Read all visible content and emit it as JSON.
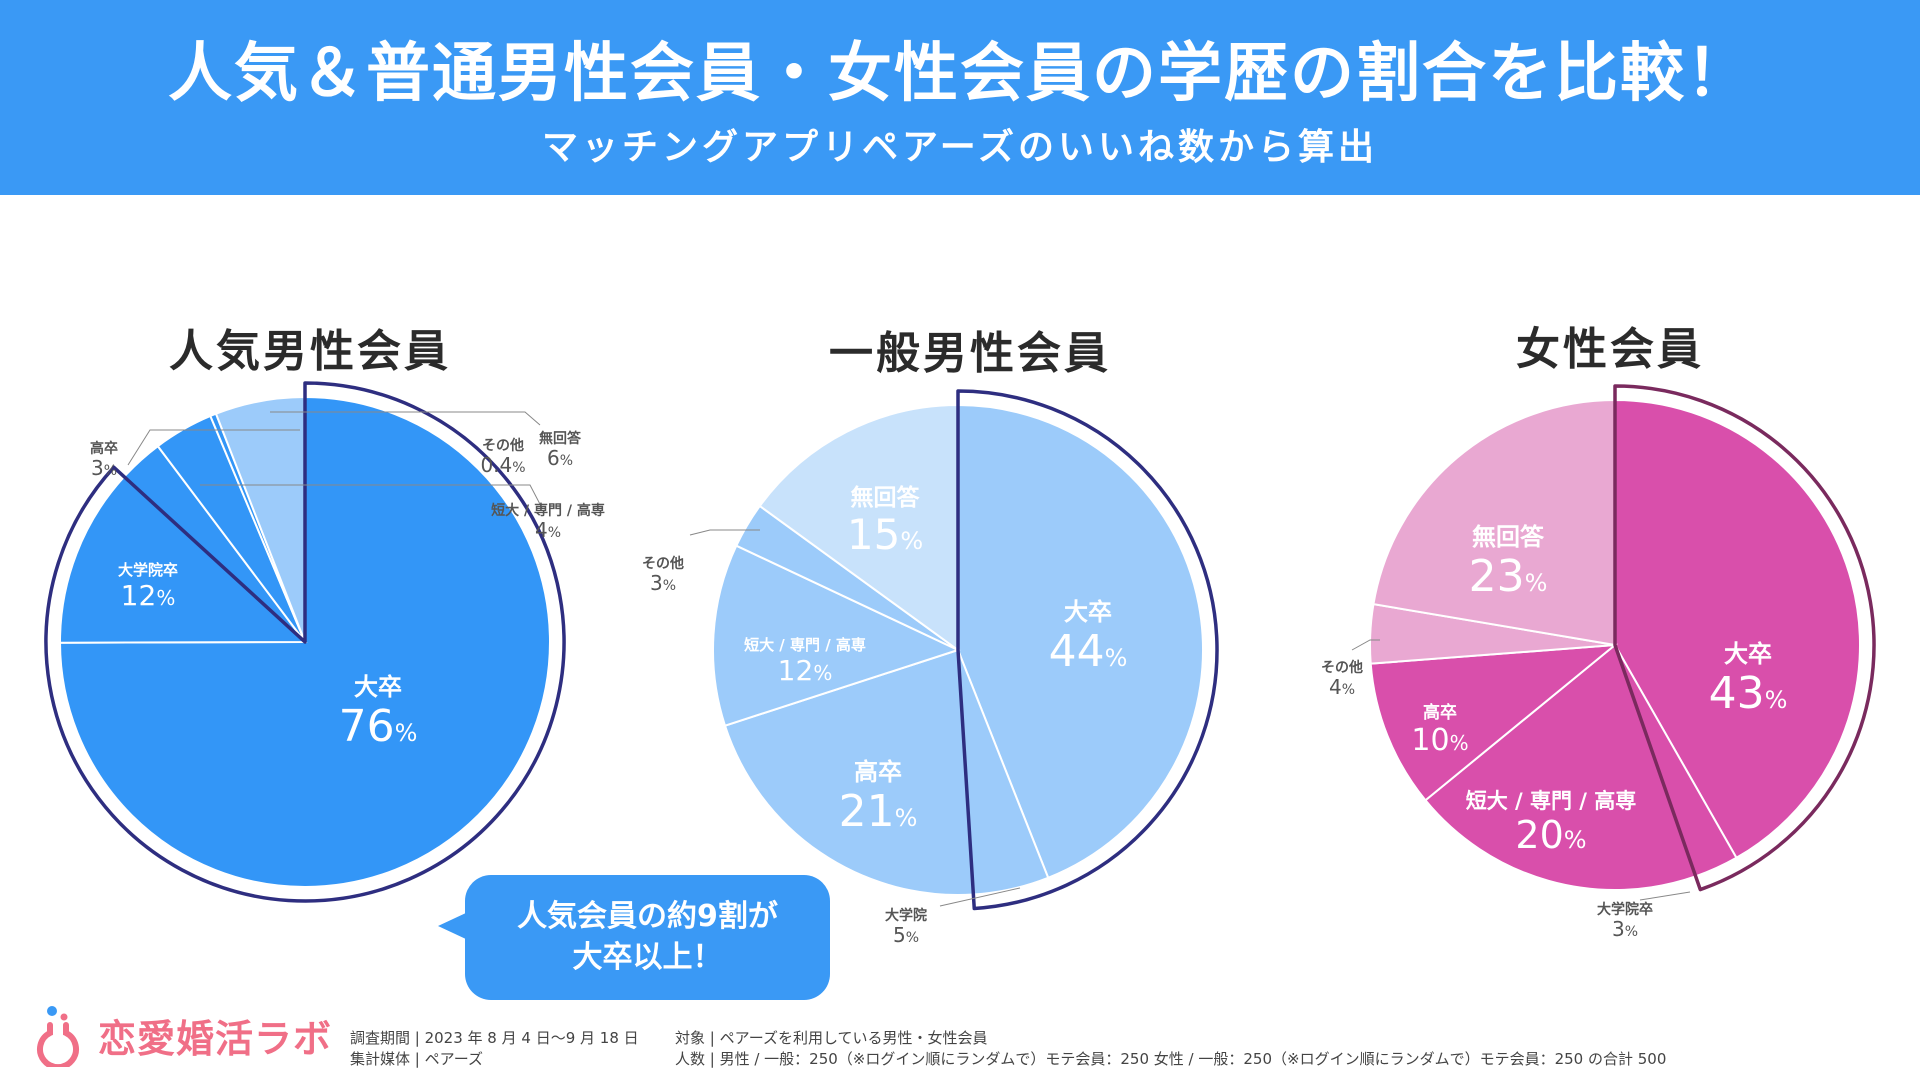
{
  "header": {
    "title": "人気＆普通男性会員・女性会員の学歴の割合を比較！",
    "subtitle": "マッチングアプリペアーズのいいね数から算出"
  },
  "colors": {
    "header_bg": "#3a99f5",
    "popular_male": "#3396f7",
    "general_male_main": "#9ccbfa",
    "general_male_light": "#c8e2fb",
    "female_main": "#d94fab",
    "female_light": "#e9a8d2",
    "highlight_outline_male": "#2e2e80",
    "highlight_outline_female": "#7a2a5e",
    "logo": "#f06f87"
  },
  "chart_data": [
    {
      "type": "pie",
      "title": "人気男性会員",
      "slices": [
        {
          "label": "大卒",
          "value": 76,
          "value_text": "76"
        },
        {
          "label": "大学院卒",
          "value": 12,
          "value_text": "12"
        },
        {
          "label": "高卒",
          "value": 3,
          "value_text": "3"
        },
        {
          "label": "短大 / 専門 / 高専",
          "value": 4,
          "value_text": "4"
        },
        {
          "label": "その他",
          "value": 0.4,
          "value_text": "0.4"
        },
        {
          "label": "無回答",
          "value": 6,
          "value_text": "6"
        }
      ],
      "highlighted": [
        "大卒",
        "大学院卒"
      ]
    },
    {
      "type": "pie",
      "title": "一般男性会員",
      "slices": [
        {
          "label": "大卒",
          "value": 44,
          "value_text": "44"
        },
        {
          "label": "大学院",
          "value": 5,
          "value_text": "5"
        },
        {
          "label": "高卒",
          "value": 21,
          "value_text": "21"
        },
        {
          "label": "短大 / 専門 / 高専",
          "value": 12,
          "value_text": "12"
        },
        {
          "label": "その他",
          "value": 3,
          "value_text": "3"
        },
        {
          "label": "無回答",
          "value": 15,
          "value_text": "15"
        }
      ],
      "highlighted": [
        "大卒",
        "大学院"
      ]
    },
    {
      "type": "pie",
      "title": "女性会員",
      "slices": [
        {
          "label": "大卒",
          "value": 43,
          "value_text": "43"
        },
        {
          "label": "大学院卒",
          "value": 3,
          "value_text": "3"
        },
        {
          "label": "短大 / 専門 / 高専",
          "value": 20,
          "value_text": "20"
        },
        {
          "label": "高卒",
          "value": 10,
          "value_text": "10"
        },
        {
          "label": "その他",
          "value": 4,
          "value_text": "4"
        },
        {
          "label": "無回答",
          "value": 23,
          "value_text": "23"
        }
      ],
      "highlighted": [
        "大卒",
        "大学院卒"
      ]
    }
  ],
  "callout": {
    "line1": "人気会員の約9割が",
    "line2": "大卒以上！"
  },
  "logo": {
    "text": "恋愛婚活ラボ"
  },
  "footer": {
    "period": "調査期間 | 2023 年 8 月 4 日〜9 月 18 日",
    "media": "集計媒体 | ペアーズ",
    "target": "対象 | ペアーズを利用している男性・女性会員",
    "count": "人数 | 男性 / 一般：250（※ログイン順にランダムで）モテ会員：250 女性 / 一般：250（※ログイン順にランダムで）モテ会員：250 の合計 500"
  }
}
